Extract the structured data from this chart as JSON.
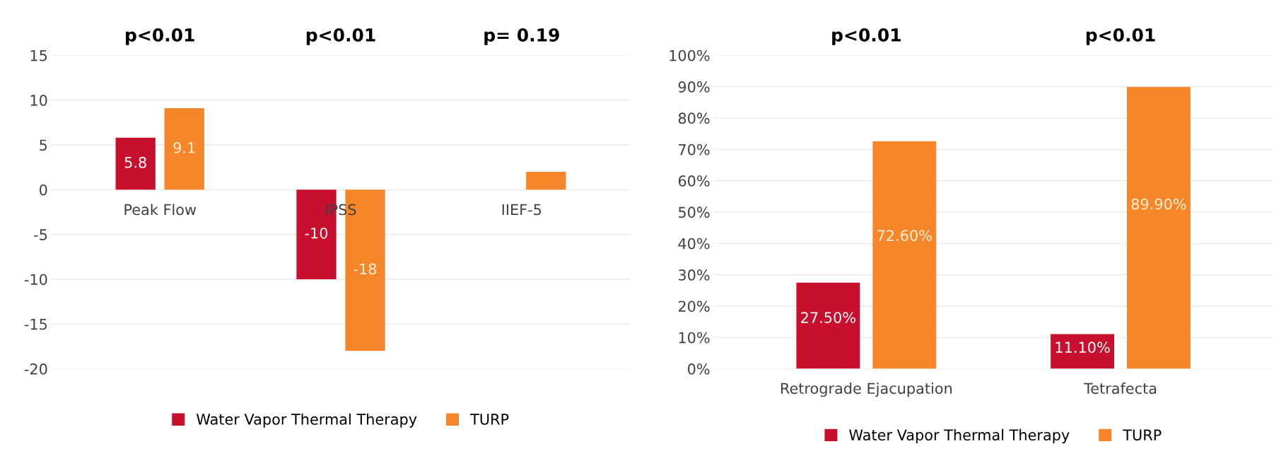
{
  "chart_data": [
    {
      "type": "bar",
      "categories": [
        "Peak Flow",
        "IPSS",
        "IIEF-5"
      ],
      "series": [
        {
          "name": "Water Vapor Thermal Therapy",
          "color": "#c8102e",
          "values": [
            5.8,
            -10,
            0
          ],
          "value_labels": [
            "5.8",
            "-10",
            null
          ]
        },
        {
          "name": "TURP",
          "color": "#f7862a",
          "values": [
            9.1,
            -18,
            2
          ],
          "value_labels": [
            "9.1",
            "-18",
            null
          ]
        }
      ],
      "ylim": [
        -20,
        15
      ],
      "yticks": [
        -20,
        -15,
        -10,
        -5,
        0,
        5,
        10,
        15
      ],
      "grid": "y",
      "legend": "bottom",
      "annotations": [
        "p<0.01",
        "p<0.01",
        "p= 0.19"
      ]
    },
    {
      "type": "bar",
      "categories": [
        "Retrograde Ejacupation",
        "Tetrafecta"
      ],
      "series": [
        {
          "name": "Water Vapor Thermal Therapy",
          "color": "#c8102e",
          "values": [
            27.5,
            11.1
          ],
          "value_labels": [
            "27.50%",
            "11.10%"
          ]
        },
        {
          "name": "TURP",
          "color": "#f7862a",
          "values": [
            72.6,
            89.9
          ],
          "value_labels": [
            "72.60%",
            "89.90%"
          ]
        }
      ],
      "ylim": [
        0,
        100
      ],
      "yticks": [
        {
          "value": 0,
          "label": "0%"
        },
        {
          "value": 10,
          "label": "10%"
        },
        {
          "value": 20,
          "label": "20%"
        },
        {
          "value": 30,
          "label": "30%"
        },
        {
          "value": 40,
          "label": "40%"
        },
        {
          "value": 50,
          "label": "50%"
        },
        {
          "value": 60,
          "label": "60%"
        },
        {
          "value": 70,
          "label": "70%"
        },
        {
          "value": 80,
          "label": "80%"
        },
        {
          "value": 90,
          "label": "90%"
        },
        {
          "value": 100,
          "label": "100%"
        }
      ],
      "grid": "y",
      "legend": "bottom",
      "annotations": [
        "p<0.01",
        "p<0.01"
      ]
    }
  ]
}
